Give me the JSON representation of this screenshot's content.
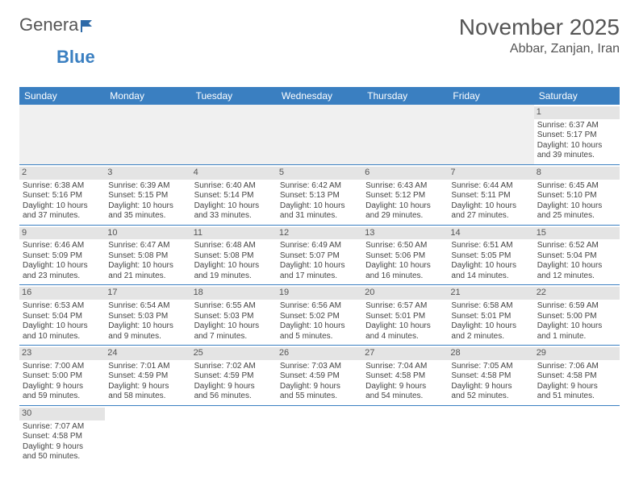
{
  "brand": {
    "part1": "Genera",
    "part2": "Blue"
  },
  "title": "November 2025",
  "location": "Abbar, Zanjan, Iran",
  "day_headers": [
    "Sunday",
    "Monday",
    "Tuesday",
    "Wednesday",
    "Thursday",
    "Friday",
    "Saturday"
  ],
  "weeks": [
    [
      null,
      null,
      null,
      null,
      null,
      null,
      {
        "n": "1",
        "sr": "Sunrise: 6:37 AM",
        "ss": "Sunset: 5:17 PM",
        "dl1": "Daylight: 10 hours",
        "dl2": "and 39 minutes."
      }
    ],
    [
      {
        "n": "2",
        "sr": "Sunrise: 6:38 AM",
        "ss": "Sunset: 5:16 PM",
        "dl1": "Daylight: 10 hours",
        "dl2": "and 37 minutes."
      },
      {
        "n": "3",
        "sr": "Sunrise: 6:39 AM",
        "ss": "Sunset: 5:15 PM",
        "dl1": "Daylight: 10 hours",
        "dl2": "and 35 minutes."
      },
      {
        "n": "4",
        "sr": "Sunrise: 6:40 AM",
        "ss": "Sunset: 5:14 PM",
        "dl1": "Daylight: 10 hours",
        "dl2": "and 33 minutes."
      },
      {
        "n": "5",
        "sr": "Sunrise: 6:42 AM",
        "ss": "Sunset: 5:13 PM",
        "dl1": "Daylight: 10 hours",
        "dl2": "and 31 minutes."
      },
      {
        "n": "6",
        "sr": "Sunrise: 6:43 AM",
        "ss": "Sunset: 5:12 PM",
        "dl1": "Daylight: 10 hours",
        "dl2": "and 29 minutes."
      },
      {
        "n": "7",
        "sr": "Sunrise: 6:44 AM",
        "ss": "Sunset: 5:11 PM",
        "dl1": "Daylight: 10 hours",
        "dl2": "and 27 minutes."
      },
      {
        "n": "8",
        "sr": "Sunrise: 6:45 AM",
        "ss": "Sunset: 5:10 PM",
        "dl1": "Daylight: 10 hours",
        "dl2": "and 25 minutes."
      }
    ],
    [
      {
        "n": "9",
        "sr": "Sunrise: 6:46 AM",
        "ss": "Sunset: 5:09 PM",
        "dl1": "Daylight: 10 hours",
        "dl2": "and 23 minutes."
      },
      {
        "n": "10",
        "sr": "Sunrise: 6:47 AM",
        "ss": "Sunset: 5:08 PM",
        "dl1": "Daylight: 10 hours",
        "dl2": "and 21 minutes."
      },
      {
        "n": "11",
        "sr": "Sunrise: 6:48 AM",
        "ss": "Sunset: 5:08 PM",
        "dl1": "Daylight: 10 hours",
        "dl2": "and 19 minutes."
      },
      {
        "n": "12",
        "sr": "Sunrise: 6:49 AM",
        "ss": "Sunset: 5:07 PM",
        "dl1": "Daylight: 10 hours",
        "dl2": "and 17 minutes."
      },
      {
        "n": "13",
        "sr": "Sunrise: 6:50 AM",
        "ss": "Sunset: 5:06 PM",
        "dl1": "Daylight: 10 hours",
        "dl2": "and 16 minutes."
      },
      {
        "n": "14",
        "sr": "Sunrise: 6:51 AM",
        "ss": "Sunset: 5:05 PM",
        "dl1": "Daylight: 10 hours",
        "dl2": "and 14 minutes."
      },
      {
        "n": "15",
        "sr": "Sunrise: 6:52 AM",
        "ss": "Sunset: 5:04 PM",
        "dl1": "Daylight: 10 hours",
        "dl2": "and 12 minutes."
      }
    ],
    [
      {
        "n": "16",
        "sr": "Sunrise: 6:53 AM",
        "ss": "Sunset: 5:04 PM",
        "dl1": "Daylight: 10 hours",
        "dl2": "and 10 minutes."
      },
      {
        "n": "17",
        "sr": "Sunrise: 6:54 AM",
        "ss": "Sunset: 5:03 PM",
        "dl1": "Daylight: 10 hours",
        "dl2": "and 9 minutes."
      },
      {
        "n": "18",
        "sr": "Sunrise: 6:55 AM",
        "ss": "Sunset: 5:03 PM",
        "dl1": "Daylight: 10 hours",
        "dl2": "and 7 minutes."
      },
      {
        "n": "19",
        "sr": "Sunrise: 6:56 AM",
        "ss": "Sunset: 5:02 PM",
        "dl1": "Daylight: 10 hours",
        "dl2": "and 5 minutes."
      },
      {
        "n": "20",
        "sr": "Sunrise: 6:57 AM",
        "ss": "Sunset: 5:01 PM",
        "dl1": "Daylight: 10 hours",
        "dl2": "and 4 minutes."
      },
      {
        "n": "21",
        "sr": "Sunrise: 6:58 AM",
        "ss": "Sunset: 5:01 PM",
        "dl1": "Daylight: 10 hours",
        "dl2": "and 2 minutes."
      },
      {
        "n": "22",
        "sr": "Sunrise: 6:59 AM",
        "ss": "Sunset: 5:00 PM",
        "dl1": "Daylight: 10 hours",
        "dl2": "and 1 minute."
      }
    ],
    [
      {
        "n": "23",
        "sr": "Sunrise: 7:00 AM",
        "ss": "Sunset: 5:00 PM",
        "dl1": "Daylight: 9 hours",
        "dl2": "and 59 minutes."
      },
      {
        "n": "24",
        "sr": "Sunrise: 7:01 AM",
        "ss": "Sunset: 4:59 PM",
        "dl1": "Daylight: 9 hours",
        "dl2": "and 58 minutes."
      },
      {
        "n": "25",
        "sr": "Sunrise: 7:02 AM",
        "ss": "Sunset: 4:59 PM",
        "dl1": "Daylight: 9 hours",
        "dl2": "and 56 minutes."
      },
      {
        "n": "26",
        "sr": "Sunrise: 7:03 AM",
        "ss": "Sunset: 4:59 PM",
        "dl1": "Daylight: 9 hours",
        "dl2": "and 55 minutes."
      },
      {
        "n": "27",
        "sr": "Sunrise: 7:04 AM",
        "ss": "Sunset: 4:58 PM",
        "dl1": "Daylight: 9 hours",
        "dl2": "and 54 minutes."
      },
      {
        "n": "28",
        "sr": "Sunrise: 7:05 AM",
        "ss": "Sunset: 4:58 PM",
        "dl1": "Daylight: 9 hours",
        "dl2": "and 52 minutes."
      },
      {
        "n": "29",
        "sr": "Sunrise: 7:06 AM",
        "ss": "Sunset: 4:58 PM",
        "dl1": "Daylight: 9 hours",
        "dl2": "and 51 minutes."
      }
    ],
    [
      {
        "n": "30",
        "sr": "Sunrise: 7:07 AM",
        "ss": "Sunset: 4:58 PM",
        "dl1": "Daylight: 9 hours",
        "dl2": "and 50 minutes."
      },
      null,
      null,
      null,
      null,
      null,
      null
    ]
  ]
}
